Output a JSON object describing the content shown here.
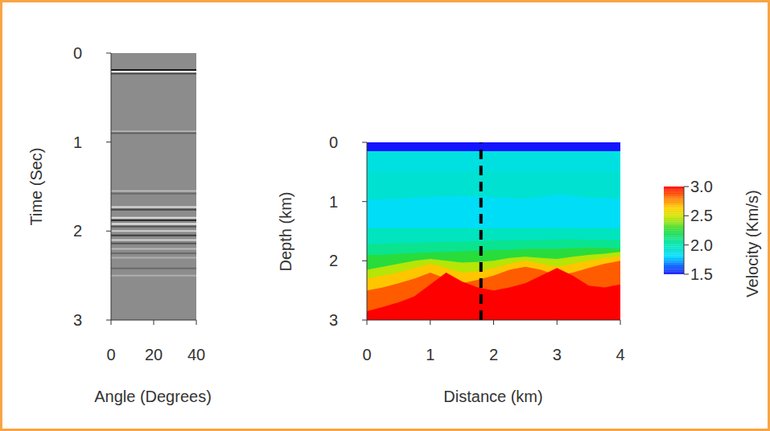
{
  "chart_data": [
    {
      "type": "seismic_gather",
      "x_label": "Angle (Degrees)",
      "y_label": "Time (Sec)",
      "xlim": [
        0,
        40
      ],
      "xticks": [
        0,
        20,
        40
      ],
      "ylim": [
        0,
        3
      ],
      "yticks": [
        0,
        1,
        2,
        3
      ],
      "events": [
        {
          "time": 0.19,
          "amplitude": -1
        },
        {
          "time": 0.21,
          "amplitude": 1
        },
        {
          "time": 0.23,
          "amplitude": -0.6
        },
        {
          "time": 0.88,
          "amplitude": 0.4
        },
        {
          "time": 0.9,
          "amplitude": -0.4
        },
        {
          "time": 1.55,
          "amplitude": 0.4
        },
        {
          "time": 1.58,
          "amplitude": -0.3
        },
        {
          "time": 1.73,
          "amplitude": 0.7
        },
        {
          "time": 1.76,
          "amplitude": -0.6
        },
        {
          "time": 1.85,
          "amplitude": 0.7
        },
        {
          "time": 1.88,
          "amplitude": -0.8
        },
        {
          "time": 1.92,
          "amplitude": 0.8
        },
        {
          "time": 1.95,
          "amplitude": -0.5
        },
        {
          "time": 2.0,
          "amplitude": 0.6
        },
        {
          "time": 2.05,
          "amplitude": -0.7
        },
        {
          "time": 2.1,
          "amplitude": 0.6
        },
        {
          "time": 2.14,
          "amplitude": -0.5
        },
        {
          "time": 2.2,
          "amplitude": 0.4
        },
        {
          "time": 2.25,
          "amplitude": -0.3
        },
        {
          "time": 2.3,
          "amplitude": 0.3
        },
        {
          "time": 2.42,
          "amplitude": -0.3
        },
        {
          "time": 2.5,
          "amplitude": 0.3
        }
      ]
    },
    {
      "type": "heatmap",
      "x_label": "Distance (km)",
      "y_label": "Depth (km)",
      "xlim": [
        0,
        4
      ],
      "xticks": [
        0,
        1,
        2,
        3,
        4
      ],
      "ylim": [
        0,
        3
      ],
      "yticks": [
        0,
        1,
        2,
        3
      ],
      "x": [
        0,
        0.25,
        0.5,
        0.75,
        1,
        1.25,
        1.5,
        1.75,
        2,
        2.25,
        2.5,
        2.75,
        3,
        3.25,
        3.5,
        3.75,
        4
      ],
      "layers": [
        {
          "velocity": 1.5,
          "top": [
            0,
            0,
            0,
            0,
            0,
            0,
            0,
            0,
            0,
            0,
            0,
            0,
            0,
            0,
            0,
            0,
            0
          ]
        },
        {
          "velocity": 1.88,
          "top": [
            0.15,
            0.15,
            0.15,
            0.15,
            0.15,
            0.15,
            0.15,
            0.15,
            0.15,
            0.15,
            0.15,
            0.15,
            0.15,
            0.15,
            0.15,
            0.15,
            0.15
          ]
        },
        {
          "velocity": 1.92,
          "top": [
            0.5,
            0.5,
            0.5,
            0.5,
            0.5,
            0.5,
            0.5,
            0.5,
            0.5,
            0.5,
            0.5,
            0.5,
            0.5,
            0.5,
            0.5,
            0.5,
            0.5
          ]
        },
        {
          "velocity": 1.82,
          "top": [
            0.97,
            0.96,
            0.95,
            0.93,
            0.92,
            0.91,
            0.9,
            0.92,
            0.93,
            0.94,
            0.95,
            0.92,
            0.88,
            0.9,
            0.93,
            0.94,
            0.95
          ]
        },
        {
          "velocity": 1.97,
          "top": [
            1.45,
            1.45,
            1.45,
            1.45,
            1.45,
            1.45,
            1.45,
            1.45,
            1.45,
            1.45,
            1.45,
            1.45,
            1.45,
            1.45,
            1.45,
            1.45,
            1.45
          ]
        },
        {
          "velocity": 2.08,
          "top": [
            1.72,
            1.71,
            1.7,
            1.7,
            1.69,
            1.68,
            1.68,
            1.67,
            1.66,
            1.66,
            1.65,
            1.65,
            1.64,
            1.64,
            1.65,
            1.65,
            1.65
          ]
        },
        {
          "velocity": 2.25,
          "top": [
            1.9,
            1.9,
            1.88,
            1.87,
            1.86,
            1.85,
            1.84,
            1.83,
            1.82,
            1.82,
            1.8,
            1.8,
            1.8,
            1.79,
            1.78,
            1.78,
            1.8
          ]
        },
        {
          "velocity": 2.45,
          "top": [
            2.15,
            2.1,
            2.05,
            2.0,
            1.97,
            2.0,
            2.03,
            2.02,
            2.0,
            1.95,
            1.93,
            1.95,
            1.97,
            1.93,
            1.9,
            1.88,
            1.85
          ]
        },
        {
          "velocity": 2.65,
          "top": [
            2.3,
            2.25,
            2.2,
            2.12,
            2.05,
            2.12,
            2.2,
            2.18,
            2.12,
            2.05,
            2.0,
            2.05,
            2.1,
            2.05,
            2.0,
            1.95,
            1.92
          ]
        },
        {
          "velocity": 2.85,
          "top": [
            2.5,
            2.45,
            2.38,
            2.3,
            2.2,
            2.3,
            2.38,
            2.32,
            2.25,
            2.15,
            2.1,
            2.15,
            2.25,
            2.2,
            2.12,
            2.05,
            2.0
          ]
        },
        {
          "velocity": 3.0,
          "top": [
            2.85,
            2.78,
            2.7,
            2.6,
            2.4,
            2.2,
            2.35,
            2.45,
            2.5,
            2.45,
            2.38,
            2.25,
            2.12,
            2.25,
            2.42,
            2.45,
            2.4
          ]
        }
      ],
      "vertical_line": {
        "x": 1.8,
        "color": "#000000",
        "line_style": "dashed"
      },
      "colorbar": {
        "label": "Velocity (Km/s)",
        "lim": [
          1.5,
          3.0
        ],
        "ticks": [
          1.5,
          {
            "value": 2,
            "label": "2.0"
          },
          2.5,
          {
            "value": 3,
            "label": "3.0"
          }
        ]
      }
    }
  ]
}
